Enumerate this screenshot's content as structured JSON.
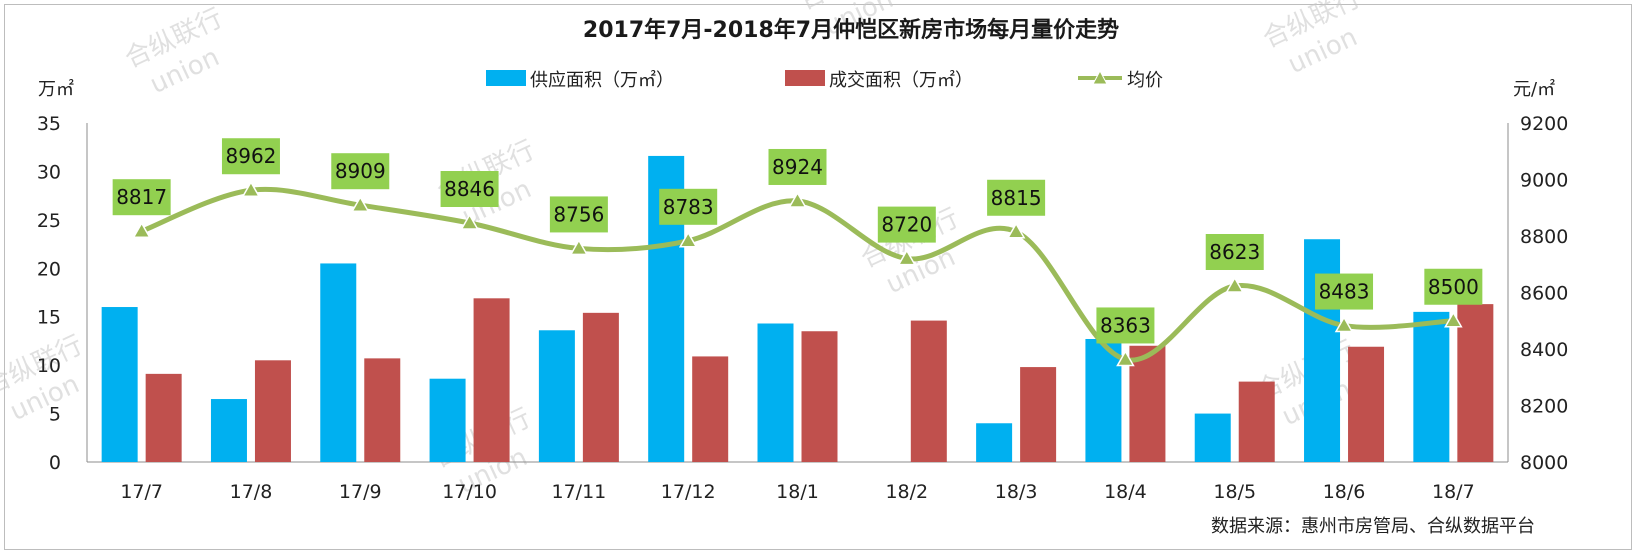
{
  "chart_data": {
    "type": "bar",
    "title": "2017年7月-2018年7月仲恺区新房市场每月量价走势",
    "categories": [
      "17/7",
      "17/8",
      "17/9",
      "17/10",
      "17/11",
      "17/12",
      "18/1",
      "18/2",
      "18/3",
      "18/4",
      "18/5",
      "18/6",
      "18/7"
    ],
    "y_left": {
      "unit": "万㎡",
      "ylim": [
        0,
        35
      ],
      "ticks": [
        0,
        5,
        10,
        15,
        20,
        25,
        30,
        35
      ]
    },
    "y_right": {
      "unit": "元/㎡",
      "ylim": [
        8000,
        9200
      ],
      "ticks": [
        8000,
        8200,
        8400,
        8600,
        8800,
        9000,
        9200
      ]
    },
    "series": [
      {
        "name": "供应面积（万㎡）",
        "type": "bar",
        "axis": "left",
        "color": "#00b0f0",
        "values": [
          16.0,
          6.5,
          20.5,
          8.6,
          13.6,
          31.6,
          14.3,
          0,
          4.0,
          12.7,
          5.0,
          23.0,
          15.5
        ]
      },
      {
        "name": "成交面积（万㎡）",
        "type": "bar",
        "axis": "left",
        "color": "#c0504d",
        "values": [
          9.1,
          10.5,
          10.7,
          16.9,
          15.4,
          10.9,
          13.5,
          14.6,
          9.8,
          12.0,
          8.3,
          11.9,
          16.3
        ]
      },
      {
        "name": "均价",
        "type": "line",
        "axis": "right",
        "color": "#9bbb59",
        "label_bg": "#92d050",
        "values": [
          8817,
          8962,
          8909,
          8846,
          8756,
          8783,
          8924,
          8720,
          8815,
          8363,
          8623,
          8483,
          8500
        ]
      }
    ],
    "legend_position": "top",
    "grid": false
  },
  "source_text": "数据来源：惠州市房管局、合纵数据平台",
  "watermark": {
    "line1": "合纵联行",
    "line2": "union"
  }
}
